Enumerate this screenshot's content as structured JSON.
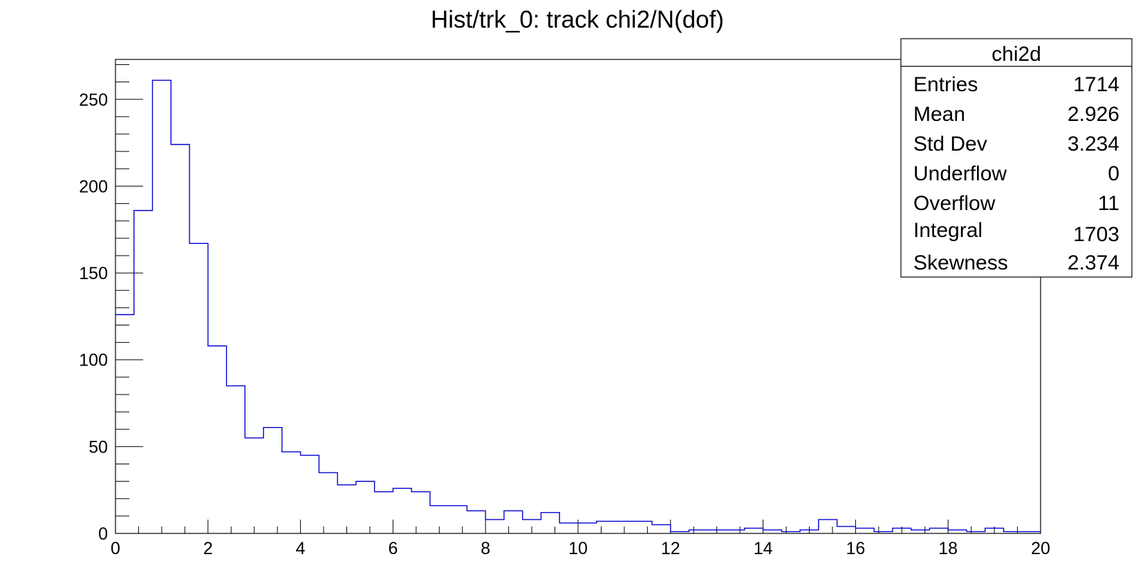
{
  "chart_data": {
    "type": "bar",
    "title": "Hist/trk_0: track chi2/N(dof)",
    "xlabel": "",
    "ylabel": "",
    "xlim": [
      0,
      20
    ],
    "ylim": [
      0,
      273
    ],
    "bin_width": 0.4,
    "line_color": "#0000cc",
    "x_ticks": [
      "0",
      "2",
      "4",
      "6",
      "8",
      "10",
      "12",
      "14",
      "16",
      "18",
      "20"
    ],
    "y_ticks": [
      "0",
      "50",
      "100",
      "150",
      "200",
      "250"
    ],
    "bins": [
      {
        "x0": 0.0,
        "y": 126
      },
      {
        "x0": 0.4,
        "y": 186
      },
      {
        "x0": 0.8,
        "y": 261
      },
      {
        "x0": 1.2,
        "y": 224
      },
      {
        "x0": 1.6,
        "y": 167
      },
      {
        "x0": 2.0,
        "y": 108
      },
      {
        "x0": 2.4,
        "y": 85
      },
      {
        "x0": 2.8,
        "y": 55
      },
      {
        "x0": 3.2,
        "y": 61
      },
      {
        "x0": 3.6,
        "y": 47
      },
      {
        "x0": 4.0,
        "y": 45
      },
      {
        "x0": 4.4,
        "y": 35
      },
      {
        "x0": 4.8,
        "y": 28
      },
      {
        "x0": 5.2,
        "y": 30
      },
      {
        "x0": 5.6,
        "y": 24
      },
      {
        "x0": 6.0,
        "y": 26
      },
      {
        "x0": 6.4,
        "y": 24
      },
      {
        "x0": 6.8,
        "y": 16
      },
      {
        "x0": 7.2,
        "y": 16
      },
      {
        "x0": 7.6,
        "y": 13
      },
      {
        "x0": 8.0,
        "y": 8
      },
      {
        "x0": 8.4,
        "y": 13
      },
      {
        "x0": 8.8,
        "y": 8
      },
      {
        "x0": 9.2,
        "y": 12
      },
      {
        "x0": 9.6,
        "y": 6
      },
      {
        "x0": 10.0,
        "y": 6
      },
      {
        "x0": 10.4,
        "y": 7
      },
      {
        "x0": 10.8,
        "y": 7
      },
      {
        "x0": 11.2,
        "y": 7
      },
      {
        "x0": 11.6,
        "y": 5
      },
      {
        "x0": 12.0,
        "y": 1
      },
      {
        "x0": 12.4,
        "y": 2
      },
      {
        "x0": 12.8,
        "y": 2
      },
      {
        "x0": 13.2,
        "y": 2
      },
      {
        "x0": 13.6,
        "y": 3
      },
      {
        "x0": 14.0,
        "y": 2
      },
      {
        "x0": 14.4,
        "y": 1
      },
      {
        "x0": 14.8,
        "y": 2
      },
      {
        "x0": 15.2,
        "y": 8
      },
      {
        "x0": 15.6,
        "y": 4
      },
      {
        "x0": 16.0,
        "y": 3
      },
      {
        "x0": 16.4,
        "y": 1
      },
      {
        "x0": 16.8,
        "y": 3
      },
      {
        "x0": 17.2,
        "y": 2
      },
      {
        "x0": 17.6,
        "y": 3
      },
      {
        "x0": 18.0,
        "y": 2
      },
      {
        "x0": 18.4,
        "y": 1
      },
      {
        "x0": 18.8,
        "y": 3
      },
      {
        "x0": 19.2,
        "y": 1
      },
      {
        "x0": 19.6,
        "y": 1
      }
    ],
    "stats_box": {
      "title": "chi2d",
      "rows": [
        {
          "label": "Entries",
          "value": "1714"
        },
        {
          "label": "Mean",
          "value": "2.926"
        },
        {
          "label": "Std Dev",
          "value": "3.234"
        },
        {
          "label": "Underflow",
          "value": "0"
        },
        {
          "label": "Overflow",
          "value": "11"
        },
        {
          "label": "Integral",
          "value": "1703"
        },
        {
          "label": "Skewness",
          "value": "2.374"
        }
      ]
    }
  }
}
